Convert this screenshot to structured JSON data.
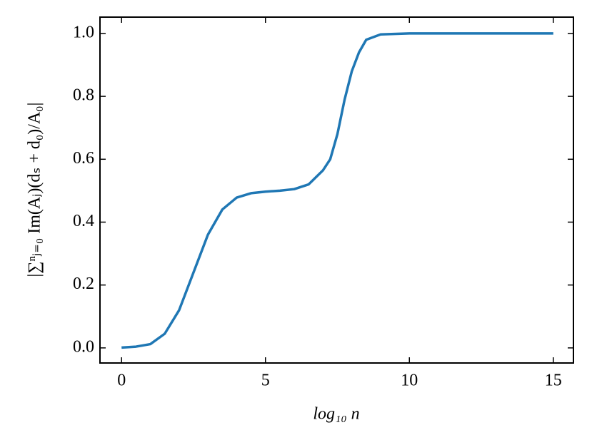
{
  "chart_data": {
    "type": "line",
    "xlabel": "log₁₀ n",
    "ylabel": "|∑ⁿⱼ₌₀ Im(Aⱼ)(dₛ + d₀)/A₀|",
    "x": [
      0,
      0.5,
      1,
      1.5,
      2,
      2.5,
      3,
      3.5,
      4,
      4.5,
      5,
      5.5,
      6,
      6.5,
      7,
      7.25,
      7.5,
      7.75,
      8,
      8.25,
      8.5,
      9,
      10,
      11,
      12,
      13,
      14,
      15
    ],
    "series": [
      {
        "color": "#1f77b4",
        "values": [
          0.001,
          0.004,
          0.012,
          0.045,
          0.12,
          0.24,
          0.36,
          0.44,
          0.478,
          0.492,
          0.497,
          0.5,
          0.505,
          0.52,
          0.565,
          0.6,
          0.68,
          0.79,
          0.88,
          0.94,
          0.98,
          0.997,
          1.0,
          1.0,
          1.0,
          1.0,
          1.0,
          1.0
        ]
      }
    ],
    "xlim": [
      -0.75,
      15.7
    ],
    "ylim": [
      -0.048,
      1.052
    ],
    "xticks": [
      0,
      5,
      10,
      15
    ],
    "yticks": [
      {
        "value": 0,
        "label": "0.0"
      },
      0.2,
      0.4,
      0.6,
      0.8,
      {
        "value": 1,
        "label": "1.0"
      }
    ],
    "grid": false
  }
}
